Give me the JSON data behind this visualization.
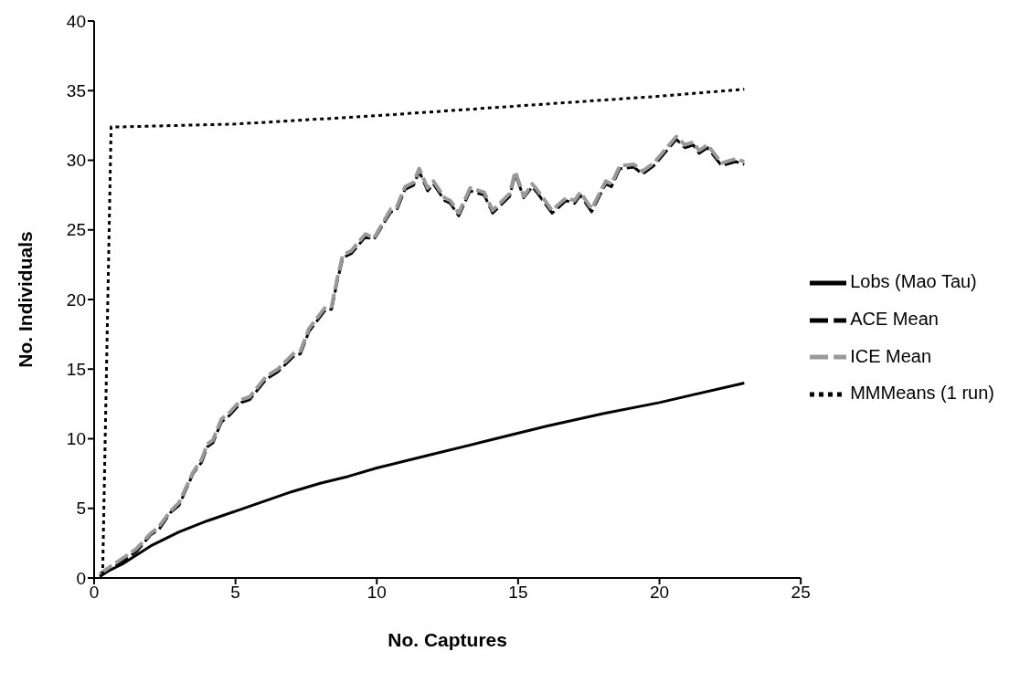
{
  "chart_data": {
    "type": "line",
    "xlabel": "No. Captures",
    "ylabel": "No. Individuals",
    "xlim": [
      0,
      25
    ],
    "xticks": [
      0,
      5,
      10,
      15,
      20,
      25
    ],
    "ylim": [
      0,
      40
    ],
    "yticks": [
      0,
      5,
      10,
      15,
      20,
      25,
      30,
      35,
      40
    ],
    "grid": false,
    "legend": "right",
    "marker": "none",
    "series": [
      {
        "name": "Lobs (Mao Tau)",
        "color": "#000000",
        "line_style": "solid",
        "x": [
          0.2,
          1,
          2,
          3,
          4,
          5,
          6,
          7,
          8,
          9,
          10,
          12,
          14,
          16,
          18,
          20,
          23
        ],
        "values": [
          0.2,
          1.0,
          2.3,
          3.3,
          4.1,
          4.8,
          5.5,
          6.2,
          6.8,
          7.3,
          7.9,
          8.9,
          9.9,
          10.9,
          11.8,
          12.6,
          14.0
        ]
      },
      {
        "name": "ACE Mean",
        "color": "#000000",
        "line_style": "dashed",
        "x": [
          0.2,
          1.0,
          1.5,
          2.0,
          2.3,
          2.7,
          3.0,
          3.5,
          3.8,
          4.0,
          4.2,
          4.5,
          4.8,
          5.2,
          5.5,
          6.1,
          6.5,
          7.1,
          7.3,
          7.6,
          8.2,
          8.4,
          8.6,
          8.8,
          9.1,
          9.6,
          9.9,
          10.5,
          10.7,
          11.0,
          11.3,
          11.5,
          11.8,
          12.0,
          12.4,
          12.6,
          12.9,
          13.3,
          13.8,
          14.1,
          14.4,
          14.7,
          14.9,
          15.2,
          15.5,
          15.7,
          16.2,
          16.7,
          17.0,
          17.2,
          17.6,
          18.1,
          18.3,
          18.6,
          19.1,
          19.4,
          19.8,
          20.6,
          20.9,
          21.2,
          21.4,
          21.7,
          22.2,
          22.7,
          23.0
        ],
        "values": [
          0.1,
          1.2,
          1.9,
          3.1,
          3.5,
          4.7,
          5.2,
          7.5,
          8.3,
          9.4,
          9.7,
          11.2,
          11.7,
          12.6,
          12.8,
          14.3,
          14.8,
          16.0,
          16.1,
          17.7,
          19.3,
          19.3,
          21.3,
          23.0,
          23.3,
          24.5,
          24.3,
          26.3,
          26.4,
          27.9,
          28.2,
          29.2,
          27.8,
          28.3,
          27.1,
          26.9,
          26.0,
          27.8,
          27.5,
          26.2,
          26.8,
          27.4,
          29.0,
          27.3,
          28.1,
          27.6,
          26.2,
          27.1,
          26.9,
          27.5,
          26.3,
          28.3,
          28.1,
          29.4,
          29.5,
          29.0,
          29.6,
          31.5,
          30.9,
          31.1,
          30.5,
          30.9,
          29.6,
          29.9,
          29.7
        ]
      },
      {
        "name": "ICE Mean",
        "color": "#999999",
        "line_style": "dashed",
        "x": [
          0.2,
          1.0,
          1.5,
          2.0,
          2.3,
          2.7,
          3.0,
          3.5,
          3.8,
          4.0,
          4.2,
          4.5,
          4.8,
          5.2,
          5.5,
          6.1,
          6.5,
          7.1,
          7.3,
          7.6,
          8.2,
          8.4,
          8.6,
          8.8,
          9.1,
          9.6,
          9.9,
          10.5,
          10.7,
          11.0,
          11.3,
          11.5,
          11.8,
          12.0,
          12.4,
          12.6,
          12.9,
          13.3,
          13.8,
          14.1,
          14.4,
          14.7,
          14.9,
          15.2,
          15.5,
          15.7,
          16.2,
          16.7,
          17.0,
          17.2,
          17.6,
          18.1,
          18.3,
          18.6,
          19.1,
          19.4,
          19.8,
          20.6,
          20.9,
          21.2,
          21.4,
          21.7,
          22.2,
          22.7,
          23.0
        ],
        "values": [
          0.3,
          1.4,
          2.1,
          3.2,
          3.7,
          4.8,
          5.4,
          7.6,
          8.5,
          9.6,
          9.9,
          11.4,
          11.9,
          12.8,
          13.0,
          14.5,
          15.0,
          16.2,
          16.3,
          17.9,
          19.5,
          19.5,
          21.5,
          23.2,
          23.5,
          24.7,
          24.4,
          26.5,
          26.6,
          28.1,
          28.4,
          29.4,
          28.0,
          28.5,
          27.3,
          27.1,
          26.2,
          28.0,
          27.7,
          26.4,
          27.0,
          27.6,
          29.2,
          27.4,
          28.3,
          27.8,
          26.4,
          27.3,
          27.1,
          27.7,
          26.5,
          28.5,
          28.3,
          29.6,
          29.7,
          29.2,
          29.8,
          31.7,
          31.1,
          31.3,
          30.7,
          31.1,
          29.8,
          30.1,
          29.9
        ]
      },
      {
        "name": "MMMeans (1 run)",
        "color": "#000000",
        "line_style": "dotted",
        "x": [
          0.3,
          0.6,
          1,
          5,
          10,
          15,
          20,
          23
        ],
        "values": [
          0.2,
          32.4,
          32.4,
          32.6,
          33.2,
          33.9,
          34.6,
          35.1
        ]
      }
    ]
  }
}
